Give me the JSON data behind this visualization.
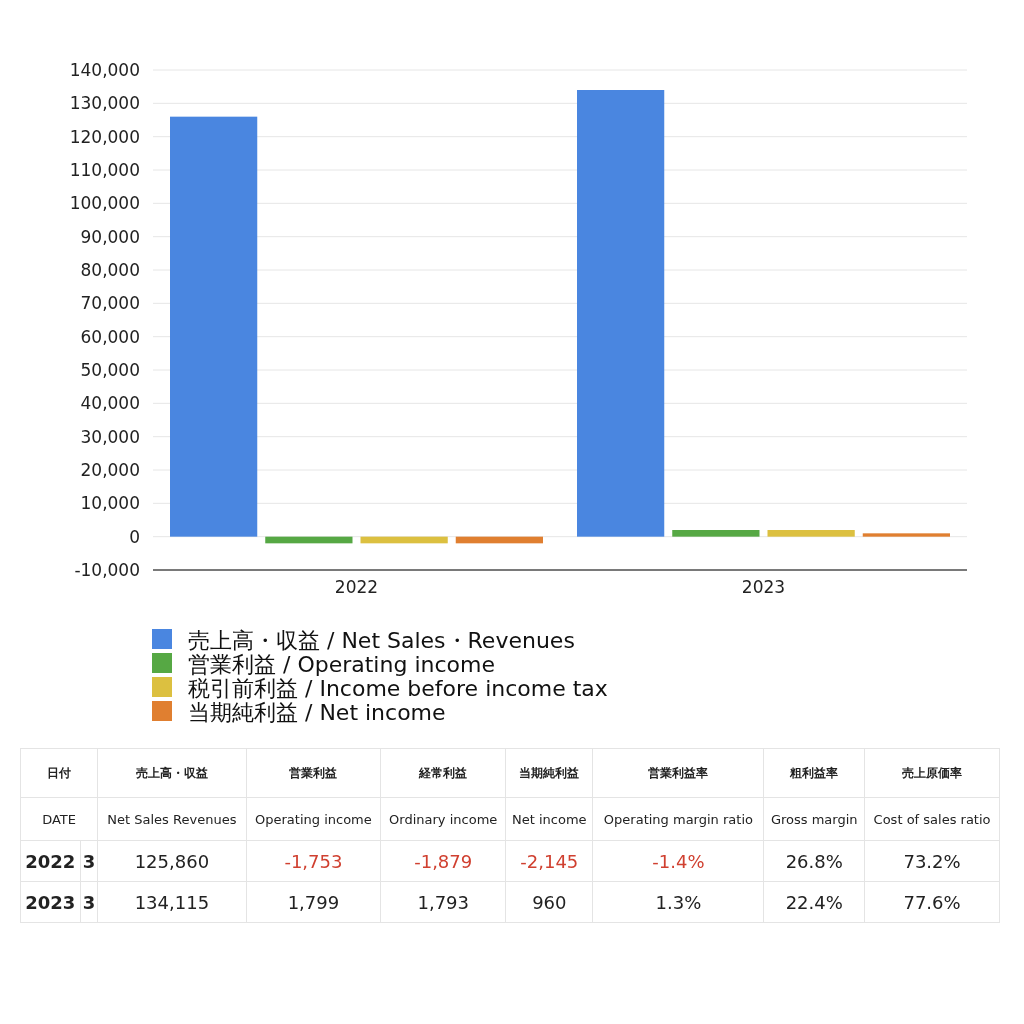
{
  "chart_data": [
    {
      "type": "bar",
      "categories": [
        "2022",
        "2023"
      ],
      "series": [
        {
          "name": "売上高・収益 / Net Sales・Revenues",
          "color": "#4a86e0",
          "values": [
            126000,
            134000
          ]
        },
        {
          "name": "営業利益 / Operating income",
          "color": "#56a844",
          "values": [
            -2000,
            2000
          ]
        },
        {
          "name": "税引前利益 / Income before income tax",
          "color": "#dcc040",
          "values": [
            -2000,
            2000
          ]
        },
        {
          "name": "当期純利益 / Net income",
          "color": "#e07f30",
          "values": [
            -2000,
            1000
          ]
        }
      ],
      "ylim": [
        -10000,
        140000
      ],
      "yticks": [
        {
          "value": -10000,
          "label": "-10,000"
        },
        0,
        {
          "value": 10000,
          "label": "10,000"
        },
        {
          "value": 20000,
          "label": "20,000"
        },
        {
          "value": 30000,
          "label": "30,000"
        },
        {
          "value": 40000,
          "label": "40,000"
        },
        {
          "value": 50000,
          "label": "50,000"
        },
        {
          "value": 60000,
          "label": "60,000"
        },
        {
          "value": 70000,
          "label": "70,000"
        },
        {
          "value": 80000,
          "label": "80,000"
        },
        {
          "value": 90000,
          "label": "90,000"
        },
        {
          "value": 100000,
          "label": "100,000"
        },
        {
          "value": 110000,
          "label": "110,000"
        },
        {
          "value": 120000,
          "label": "120,000"
        },
        {
          "value": 130000,
          "label": "130,000"
        },
        {
          "value": 140000,
          "label": "140,000"
        }
      ],
      "grid": "y",
      "legend": "bottom"
    },
    {
      "type": "other",
      "categories": [
        "日付\nDATE",
        "売上高・収益\nNet Sales Revenues",
        "営業利益\nOperating income",
        "経常利益\nOrdinary income",
        "当期純利益\nNet income",
        "営業利益率\nOperating margin ratio",
        "粗利益率\nGross margin",
        "売上原価率\nCost of sales ratio"
      ],
      "y_categories": [
        "2022",
        "2023"
      ],
      "colors": [
        [
          "#222222",
          "#222222",
          "#d04030",
          "#d04030",
          "#d04030",
          "#d04030",
          "#222222",
          "#222222"
        ],
        [
          "#222222",
          "#222222",
          "#222222",
          "#222222",
          "#222222",
          "#222222",
          "#222222",
          "#222222"
        ]
      ],
      "cell_labels": [
        [
          "3",
          "125,860",
          "-1,753",
          "-1,879",
          "-2,145",
          "-1.4%",
          "26.8%",
          "73.2%"
        ],
        [
          "3",
          "134,115",
          "1,799",
          "1,793",
          "960",
          "1.3%",
          "22.4%",
          "77.6%"
        ]
      ]
    }
  ]
}
